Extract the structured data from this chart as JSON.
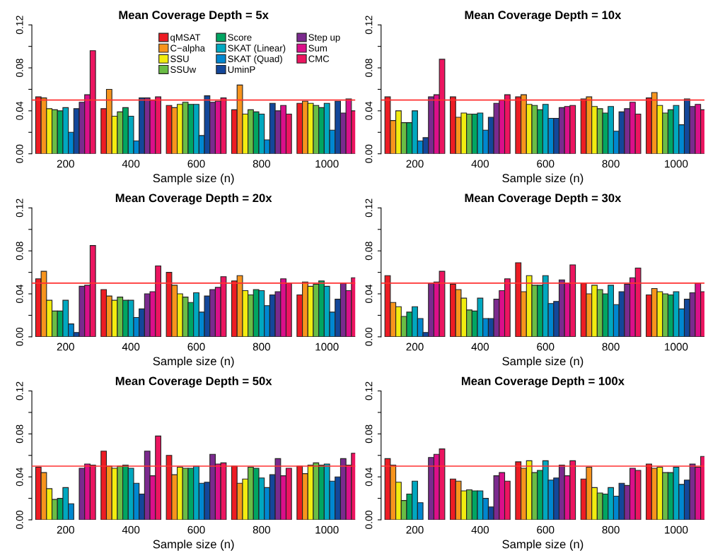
{
  "chart_data": [
    {
      "type": "bar",
      "title": "Mean Coverage Depth = 5x",
      "xlabel": "Sample size (n)",
      "categories": [
        "200",
        "400",
        "600",
        "800",
        "1000"
      ],
      "ylim": [
        0,
        0.12
      ],
      "yticks": [
        {
          "value": 0,
          "label": "0.00"
        },
        {
          "value": 0.02,
          "label": null
        },
        {
          "value": 0.04,
          "label": "0.04"
        },
        {
          "value": 0.06,
          "label": null
        },
        {
          "value": 0.08,
          "label": "0.08"
        },
        {
          "value": 0.1,
          "label": null
        },
        {
          "value": 0.12,
          "label": "0.12"
        }
      ],
      "ref_lines": [
        {
          "axis": "y",
          "value": 0.05,
          "color": "#ff3030"
        }
      ],
      "legend": "top right",
      "series": [
        {
          "name": "qMSAT",
          "color": "#ed1c24",
          "values": [
            0.053,
            0.042,
            0.045,
            0.041,
            0.047
          ]
        },
        {
          "name": "C−alpha",
          "color": "#f7941d",
          "values": [
            0.052,
            0.06,
            0.043,
            0.064,
            0.049
          ]
        },
        {
          "name": "SSU",
          "color": "#f2ec10",
          "values": [
            0.042,
            0.035,
            0.046,
            0.037,
            0.047
          ]
        },
        {
          "name": "SSUw",
          "color": "#6abd45",
          "values": [
            0.041,
            0.039,
            0.048,
            0.041,
            0.045
          ]
        },
        {
          "name": "Score",
          "color": "#00a562",
          "values": [
            0.04,
            0.043,
            0.046,
            0.039,
            0.043
          ]
        },
        {
          "name": "SKAT (Linear)",
          "color": "#00a8c0",
          "values": [
            0.043,
            0.035,
            0.046,
            0.037,
            0.047
          ]
        },
        {
          "name": "SKAT (Quad)",
          "color": "#0087d0",
          "values": [
            0.02,
            0.012,
            0.017,
            0.013,
            0.022
          ]
        },
        {
          "name": "UminP",
          "color": "#13479a",
          "values": [
            0.042,
            0.052,
            0.054,
            0.047,
            0.049
          ]
        },
        {
          "name": "Step up",
          "color": "#7b2a8e",
          "values": [
            0.048,
            0.052,
            0.048,
            0.04,
            0.038
          ]
        },
        {
          "name": "Sum",
          "color": "#db0f8a",
          "values": [
            0.055,
            0.05,
            0.049,
            0.045,
            0.051
          ]
        },
        {
          "name": "CMC",
          "color": "#ec1560",
          "values": [
            0.096,
            0.053,
            0.052,
            0.037,
            0.04
          ]
        }
      ]
    },
    {
      "type": "bar",
      "title": "Mean Coverage Depth = 10x",
      "xlabel": "Sample size (n)",
      "categories": [
        "200",
        "400",
        "600",
        "800",
        "1000"
      ],
      "ylim": [
        0,
        0.12
      ],
      "yticks": [
        {
          "value": 0,
          "label": "0.00"
        },
        {
          "value": 0.02,
          "label": null
        },
        {
          "value": 0.04,
          "label": "0.04"
        },
        {
          "value": 0.06,
          "label": null
        },
        {
          "value": 0.08,
          "label": "0.08"
        },
        {
          "value": 0.1,
          "label": null
        },
        {
          "value": 0.12,
          "label": "0.12"
        }
      ],
      "ref_lines": [
        {
          "axis": "y",
          "value": 0.05,
          "color": "#ff3030"
        }
      ],
      "series": [
        {
          "color": "#ed1c24",
          "values": [
            0.053,
            0.053,
            0.053,
            0.051,
            0.052
          ]
        },
        {
          "color": "#f7941d",
          "values": [
            0.031,
            0.034,
            0.055,
            0.053,
            0.057
          ]
        },
        {
          "color": "#f2ec10",
          "values": [
            0.04,
            0.038,
            0.046,
            0.044,
            0.045
          ]
        },
        {
          "color": "#6abd45",
          "values": [
            0.029,
            0.037,
            0.045,
            0.042,
            0.038
          ]
        },
        {
          "color": "#00a562",
          "values": [
            0.029,
            0.037,
            0.041,
            0.038,
            0.041
          ]
        },
        {
          "color": "#00a8c0",
          "values": [
            0.04,
            0.038,
            0.046,
            0.044,
            0.045
          ]
        },
        {
          "color": "#0087d0",
          "values": [
            0.012,
            0.022,
            0.033,
            0.021,
            0.027
          ]
        },
        {
          "color": "#13479a",
          "values": [
            0.015,
            0.034,
            0.033,
            0.039,
            0.051
          ]
        },
        {
          "color": "#7b2a8e",
          "values": [
            0.053,
            0.047,
            0.043,
            0.042,
            0.044
          ]
        },
        {
          "color": "#db0f8a",
          "values": [
            0.055,
            0.05,
            0.044,
            0.048,
            0.046
          ]
        },
        {
          "color": "#ec1560",
          "values": [
            0.088,
            0.055,
            0.045,
            0.037,
            0.041
          ]
        }
      ]
    },
    {
      "type": "bar",
      "title": "Mean Coverage Depth = 20x",
      "xlabel": "Sample size (n)",
      "categories": [
        "200",
        "400",
        "600",
        "800",
        "1000"
      ],
      "ylim": [
        0,
        0.12
      ],
      "yticks": [
        {
          "value": 0,
          "label": "0.00"
        },
        {
          "value": 0.02,
          "label": null
        },
        {
          "value": 0.04,
          "label": "0.04"
        },
        {
          "value": 0.06,
          "label": null
        },
        {
          "value": 0.08,
          "label": "0.08"
        },
        {
          "value": 0.1,
          "label": null
        },
        {
          "value": 0.12,
          "label": "0.12"
        }
      ],
      "ref_lines": [
        {
          "axis": "y",
          "value": 0.05,
          "color": "#ff3030"
        }
      ],
      "series": [
        {
          "color": "#ed1c24",
          "values": [
            0.054,
            0.044,
            0.06,
            0.052,
            0.039
          ]
        },
        {
          "color": "#f7941d",
          "values": [
            0.061,
            0.038,
            0.048,
            0.057,
            0.051
          ]
        },
        {
          "color": "#f2ec10",
          "values": [
            0.034,
            0.034,
            0.04,
            0.043,
            0.047
          ]
        },
        {
          "color": "#6abd45",
          "values": [
            0.024,
            0.037,
            0.037,
            0.039,
            0.049
          ]
        },
        {
          "color": "#00a562",
          "values": [
            0.024,
            0.034,
            0.032,
            0.044,
            0.052
          ]
        },
        {
          "color": "#00a8c0",
          "values": [
            0.034,
            0.034,
            0.041,
            0.043,
            0.047
          ]
        },
        {
          "color": "#0087d0",
          "values": [
            0.012,
            0.018,
            0.023,
            0.029,
            0.023
          ]
        },
        {
          "color": "#13479a",
          "values": [
            0.004,
            0.026,
            0.038,
            0.039,
            0.035
          ]
        },
        {
          "color": "#7b2a8e",
          "values": [
            0.047,
            0.04,
            0.044,
            0.042,
            0.05
          ]
        },
        {
          "color": "#db0f8a",
          "values": [
            0.048,
            0.042,
            0.046,
            0.054,
            0.043
          ]
        },
        {
          "color": "#ec1560",
          "values": [
            0.085,
            0.066,
            0.056,
            0.05,
            0.055
          ]
        }
      ]
    },
    {
      "type": "bar",
      "title": "Mean Coverage Depth = 30x",
      "xlabel": "Sample size (n)",
      "categories": [
        "200",
        "400",
        "600",
        "800",
        "1000"
      ],
      "ylim": [
        0,
        0.12
      ],
      "yticks": [
        {
          "value": 0,
          "label": "0.00"
        },
        {
          "value": 0.02,
          "label": null
        },
        {
          "value": 0.04,
          "label": "0.04"
        },
        {
          "value": 0.06,
          "label": null
        },
        {
          "value": 0.08,
          "label": "0.08"
        },
        {
          "value": 0.1,
          "label": null
        },
        {
          "value": 0.12,
          "label": "0.12"
        }
      ],
      "ref_lines": [
        {
          "axis": "y",
          "value": 0.05,
          "color": "#ff3030"
        }
      ],
      "series": [
        {
          "color": "#ed1c24",
          "values": [
            0.057,
            0.049,
            0.069,
            0.05,
            0.039
          ]
        },
        {
          "color": "#f7941d",
          "values": [
            0.032,
            0.044,
            0.042,
            0.04,
            0.045
          ]
        },
        {
          "color": "#f2ec10",
          "values": [
            0.028,
            0.036,
            0.057,
            0.048,
            0.042
          ]
        },
        {
          "color": "#6abd45",
          "values": [
            0.019,
            0.025,
            0.048,
            0.044,
            0.04
          ]
        },
        {
          "color": "#00a562",
          "values": [
            0.023,
            0.024,
            0.048,
            0.04,
            0.039
          ]
        },
        {
          "color": "#00a8c0",
          "values": [
            0.028,
            0.036,
            0.057,
            0.048,
            0.042
          ]
        },
        {
          "color": "#0087d0",
          "values": [
            0.017,
            0.017,
            0.031,
            0.03,
            0.026
          ]
        },
        {
          "color": "#13479a",
          "values": [
            0.004,
            0.017,
            0.033,
            0.042,
            0.035
          ]
        },
        {
          "color": "#7b2a8e",
          "values": [
            0.05,
            0.035,
            0.053,
            0.049,
            0.041
          ]
        },
        {
          "color": "#db0f8a",
          "values": [
            0.051,
            0.043,
            0.05,
            0.055,
            0.05
          ]
        },
        {
          "color": "#ec1560",
          "values": [
            0.061,
            0.054,
            0.067,
            0.064,
            0.042
          ]
        }
      ]
    },
    {
      "type": "bar",
      "title": "Mean Coverage Depth = 50x",
      "xlabel": "Sample size (n)",
      "categories": [
        "200",
        "400",
        "600",
        "800",
        "1000"
      ],
      "ylim": [
        0,
        0.12
      ],
      "yticks": [
        {
          "value": 0,
          "label": "0.00"
        },
        {
          "value": 0.02,
          "label": null
        },
        {
          "value": 0.04,
          "label": "0.04"
        },
        {
          "value": 0.06,
          "label": null
        },
        {
          "value": 0.08,
          "label": "0.08"
        },
        {
          "value": 0.1,
          "label": null
        },
        {
          "value": 0.12,
          "label": "0.12"
        }
      ],
      "ref_lines": [
        {
          "axis": "y",
          "value": 0.05,
          "color": "#ff3030"
        }
      ],
      "series": [
        {
          "color": "#ed1c24",
          "values": [
            0.049,
            0.064,
            0.06,
            0.05,
            0.05
          ]
        },
        {
          "color": "#f7941d",
          "values": [
            0.044,
            0.05,
            0.042,
            0.034,
            0.043
          ]
        },
        {
          "color": "#f2ec10",
          "values": [
            0.029,
            0.048,
            0.049,
            0.038,
            0.051
          ]
        },
        {
          "color": "#6abd45",
          "values": [
            0.019,
            0.05,
            0.048,
            0.049,
            0.053
          ]
        },
        {
          "color": "#00a562",
          "values": [
            0.02,
            0.051,
            0.048,
            0.048,
            0.051
          ]
        },
        {
          "color": "#00a8c0",
          "values": [
            0.03,
            0.048,
            0.05,
            0.039,
            0.052
          ]
        },
        {
          "color": "#0087d0",
          "values": [
            0.015,
            0.034,
            0.034,
            0.03,
            0.036
          ]
        },
        {
          "color": "#13479a",
          "values": [
            null,
            0.024,
            0.035,
            0.042,
            0.04
          ]
        },
        {
          "color": "#7b2a8e",
          "values": [
            0.048,
            0.064,
            0.061,
            0.057,
            0.057
          ]
        },
        {
          "color": "#db0f8a",
          "values": [
            0.052,
            0.041,
            0.052,
            0.041,
            0.051
          ]
        },
        {
          "color": "#ec1560",
          "values": [
            0.051,
            0.078,
            0.053,
            0.048,
            0.062
          ]
        }
      ]
    },
    {
      "type": "bar",
      "title": "Mean Coverage Depth = 100x",
      "xlabel": "Sample size (n)",
      "categories": [
        "200",
        "400",
        "600",
        "800",
        "1000"
      ],
      "ylim": [
        0,
        0.12
      ],
      "yticks": [
        {
          "value": 0,
          "label": "0.00"
        },
        {
          "value": 0.02,
          "label": null
        },
        {
          "value": 0.04,
          "label": "0.04"
        },
        {
          "value": 0.06,
          "label": null
        },
        {
          "value": 0.08,
          "label": "0.08"
        },
        {
          "value": 0.1,
          "label": null
        },
        {
          "value": 0.12,
          "label": "0.12"
        }
      ],
      "ref_lines": [
        {
          "axis": "y",
          "value": 0.05,
          "color": "#ff3030"
        }
      ],
      "series": [
        {
          "color": "#ed1c24",
          "values": [
            0.057,
            0.038,
            0.054,
            0.038,
            0.052
          ]
        },
        {
          "color": "#f7941d",
          "values": [
            0.051,
            0.036,
            0.048,
            0.049,
            0.048
          ]
        },
        {
          "color": "#f2ec10",
          "values": [
            0.035,
            0.027,
            0.055,
            0.03,
            0.049
          ]
        },
        {
          "color": "#6abd45",
          "values": [
            0.018,
            0.028,
            0.044,
            0.025,
            0.044
          ]
        },
        {
          "color": "#00a562",
          "values": [
            0.024,
            0.027,
            0.046,
            0.024,
            0.044
          ]
        },
        {
          "color": "#00a8c0",
          "values": [
            0.036,
            0.027,
            0.055,
            0.03,
            0.049
          ]
        },
        {
          "color": "#0087d0",
          "values": [
            0.016,
            0.02,
            0.037,
            0.022,
            0.033
          ]
        },
        {
          "color": "#13479a",
          "values": [
            null,
            0.012,
            0.039,
            0.034,
            0.037
          ]
        },
        {
          "color": "#7b2a8e",
          "values": [
            0.058,
            0.041,
            0.051,
            0.032,
            0.052
          ]
        },
        {
          "color": "#db0f8a",
          "values": [
            0.061,
            0.044,
            0.041,
            0.048,
            0.049
          ]
        },
        {
          "color": "#ec1560",
          "values": [
            0.066,
            0.036,
            0.055,
            0.046,
            0.059
          ]
        }
      ]
    }
  ]
}
